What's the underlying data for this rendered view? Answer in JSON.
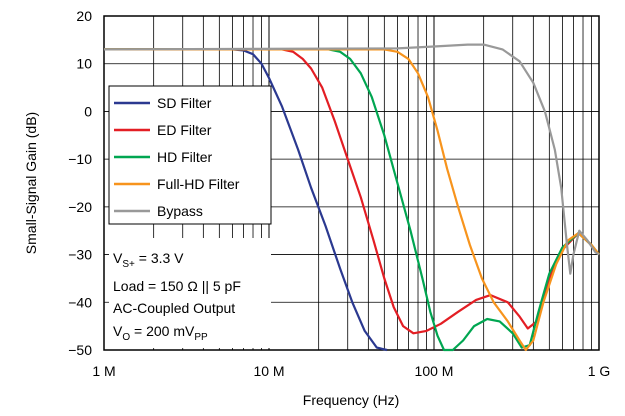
{
  "chart_data": {
    "type": "line",
    "xlabel": "Frequency (Hz)",
    "ylabel": "Small-Signal Gain (dB)",
    "xscale": "log",
    "xlim": [
      1000000,
      1000000000
    ],
    "ylim": [
      -50,
      20
    ],
    "grid": true,
    "legend_position": "upper-left",
    "x_ticks": [
      {
        "value": 1000000,
        "label": "1 M"
      },
      {
        "value": 10000000,
        "label": "10 M"
      },
      {
        "value": 100000000,
        "label": "100 M"
      },
      {
        "value": 1000000000,
        "label": "1 G"
      }
    ],
    "y_ticks": [
      {
        "value": 20,
        "label": "20"
      },
      {
        "value": 10,
        "label": "10"
      },
      {
        "value": 0,
        "label": "0"
      },
      {
        "value": -10,
        "label": "−10"
      },
      {
        "value": -20,
        "label": "−20"
      },
      {
        "value": -30,
        "label": "−30"
      },
      {
        "value": -40,
        "label": "−40"
      },
      {
        "value": -50,
        "label": "−50"
      }
    ],
    "series": [
      {
        "name": "SD Filter",
        "color": "#2b3990",
        "points": [
          [
            1000000,
            13
          ],
          [
            6000000,
            13
          ],
          [
            7000000,
            12.8
          ],
          [
            8000000,
            12
          ],
          [
            9000000,
            10
          ],
          [
            10000000,
            7
          ],
          [
            12000000,
            1
          ],
          [
            15000000,
            -8
          ],
          [
            18000000,
            -16
          ],
          [
            22000000,
            -24
          ],
          [
            27000000,
            -33
          ],
          [
            32000000,
            -40
          ],
          [
            38000000,
            -46
          ],
          [
            45000000,
            -49.5
          ],
          [
            52000000,
            -50
          ]
        ]
      },
      {
        "name": "ED Filter",
        "color": "#e31e24",
        "points": [
          [
            1000000,
            13
          ],
          [
            12000000,
            13
          ],
          [
            14000000,
            12.5
          ],
          [
            16000000,
            11
          ],
          [
            18000000,
            9
          ],
          [
            21000000,
            5
          ],
          [
            25000000,
            -2
          ],
          [
            30000000,
            -10
          ],
          [
            36000000,
            -18
          ],
          [
            43000000,
            -27
          ],
          [
            50000000,
            -35
          ],
          [
            57000000,
            -41
          ],
          [
            65000000,
            -45
          ],
          [
            75000000,
            -46.5
          ],
          [
            90000000,
            -46
          ],
          [
            110000000,
            -44.5
          ],
          [
            140000000,
            -42
          ],
          [
            180000000,
            -39.5
          ],
          [
            220000000,
            -38.5
          ],
          [
            280000000,
            -40
          ],
          [
            330000000,
            -43
          ],
          [
            370000000,
            -45.5
          ],
          [
            420000000,
            -44
          ],
          [
            500000000,
            -35
          ],
          [
            600000000,
            -29
          ],
          [
            750000000,
            -25.5
          ],
          [
            900000000,
            -28
          ],
          [
            1000000000,
            -30
          ]
        ]
      },
      {
        "name": "HD Filter",
        "color": "#00a651",
        "points": [
          [
            1000000,
            13
          ],
          [
            23000000,
            13
          ],
          [
            27000000,
            12.5
          ],
          [
            31000000,
            11
          ],
          [
            36000000,
            8
          ],
          [
            42000000,
            3
          ],
          [
            50000000,
            -5
          ],
          [
            60000000,
            -15
          ],
          [
            72000000,
            -25
          ],
          [
            85000000,
            -35
          ],
          [
            95000000,
            -42
          ],
          [
            105000000,
            -47
          ],
          [
            115000000,
            -50
          ],
          [
            130000000,
            -50
          ],
          [
            150000000,
            -48
          ],
          [
            175000000,
            -45
          ],
          [
            210000000,
            -43.5
          ],
          [
            250000000,
            -44
          ],
          [
            300000000,
            -46.5
          ],
          [
            340000000,
            -49.5
          ],
          [
            380000000,
            -49
          ],
          [
            430000000,
            -42
          ],
          [
            500000000,
            -34
          ],
          [
            600000000,
            -28.5
          ],
          [
            750000000,
            -25.5
          ],
          [
            900000000,
            -28
          ],
          [
            1000000000,
            -30
          ]
        ]
      },
      {
        "name": "Full-HD Filter",
        "color": "#f7941d",
        "points": [
          [
            1000000,
            13
          ],
          [
            50000000,
            13
          ],
          [
            60000000,
            12.5
          ],
          [
            70000000,
            11
          ],
          [
            80000000,
            8
          ],
          [
            92000000,
            3
          ],
          [
            105000000,
            -4
          ],
          [
            120000000,
            -12
          ],
          [
            140000000,
            -20
          ],
          [
            165000000,
            -28
          ],
          [
            195000000,
            -35
          ],
          [
            230000000,
            -40
          ],
          [
            280000000,
            -44
          ],
          [
            330000000,
            -48
          ],
          [
            360000000,
            -50
          ],
          [
            400000000,
            -48
          ],
          [
            460000000,
            -40
          ],
          [
            550000000,
            -32
          ],
          [
            650000000,
            -27
          ],
          [
            750000000,
            -25.5
          ],
          [
            900000000,
            -28
          ],
          [
            1000000000,
            -30
          ]
        ]
      },
      {
        "name": "Bypass",
        "color": "#999999",
        "points": [
          [
            1000000,
            13
          ],
          [
            60000000,
            13.2
          ],
          [
            100000000,
            13.6
          ],
          [
            160000000,
            14
          ],
          [
            200000000,
            14
          ],
          [
            260000000,
            13
          ],
          [
            330000000,
            10.5
          ],
          [
            400000000,
            6
          ],
          [
            470000000,
            0
          ],
          [
            540000000,
            -8
          ],
          [
            590000000,
            -16
          ],
          [
            640000000,
            -28
          ],
          [
            670000000,
            -34
          ],
          [
            700000000,
            -30
          ],
          [
            760000000,
            -25
          ],
          [
            850000000,
            -27
          ],
          [
            950000000,
            -29.5
          ],
          [
            1000000000,
            -30
          ]
        ]
      }
    ],
    "annotations": {
      "supply": {
        "main": "V",
        "sub": "S+",
        "rest": " = 3.3 V"
      },
      "load": "Load = 150 Ω || 5 pF",
      "coupling": "AC-Coupled Output",
      "vout": {
        "main": "V",
        "sub": "O",
        "rest": " = 200 mV",
        "sub2": "PP"
      }
    }
  }
}
